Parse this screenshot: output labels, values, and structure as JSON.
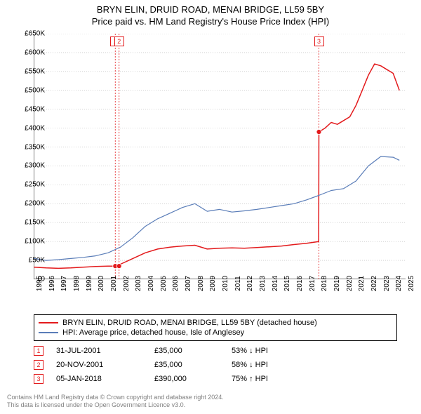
{
  "title": {
    "line1": "BRYN ELIN, DRUID ROAD, MENAI BRIDGE, LL59 5BY",
    "line2": "Price paid vs. HM Land Registry's House Price Index (HPI)"
  },
  "chart": {
    "type": "line",
    "background_color": "#ffffff",
    "grid_color": "#d0d0d0",
    "tick_dash_color": "#b8b8b8",
    "ylim": [
      0,
      650000
    ],
    "ytick_step": 50000,
    "yticks": [
      "£0",
      "£50K",
      "£100K",
      "£150K",
      "£200K",
      "£250K",
      "£300K",
      "£350K",
      "£400K",
      "£450K",
      "£500K",
      "£550K",
      "£600K",
      "£650K"
    ],
    "xlim": [
      1995,
      2025
    ],
    "xticks": [
      1995,
      1996,
      1997,
      1998,
      1999,
      2000,
      2001,
      2002,
      2003,
      2004,
      2005,
      2006,
      2007,
      2008,
      2009,
      2010,
      2011,
      2012,
      2013,
      2014,
      2015,
      2016,
      2017,
      2018,
      2019,
      2020,
      2021,
      2022,
      2023,
      2024,
      2025
    ],
    "label_fontsize": 10,
    "series": [
      {
        "name": "property",
        "label": "BRYN ELIN, DRUID ROAD, MENAI BRIDGE, LL59 5BY (detached house)",
        "color": "#e31a1c",
        "line_width": 1.5,
        "points": [
          [
            1995,
            32000
          ],
          [
            1996,
            30000
          ],
          [
            1997,
            29000
          ],
          [
            1998,
            30000
          ],
          [
            1999,
            32000
          ],
          [
            2000,
            34000
          ],
          [
            2001,
            35000
          ],
          [
            2001.58,
            35000
          ],
          [
            2001.89,
            35000
          ],
          [
            2002,
            40000
          ],
          [
            2003,
            55000
          ],
          [
            2004,
            70000
          ],
          [
            2005,
            80000
          ],
          [
            2006,
            85000
          ],
          [
            2007,
            88000
          ],
          [
            2008,
            90000
          ],
          [
            2009,
            80000
          ],
          [
            2010,
            82000
          ],
          [
            2011,
            83000
          ],
          [
            2012,
            82000
          ],
          [
            2013,
            84000
          ],
          [
            2014,
            86000
          ],
          [
            2015,
            88000
          ],
          [
            2016,
            92000
          ],
          [
            2017,
            95000
          ],
          [
            2017.99,
            100000
          ],
          [
            2018.01,
            390000
          ],
          [
            2018.5,
            400000
          ],
          [
            2019,
            415000
          ],
          [
            2019.5,
            410000
          ],
          [
            2020,
            420000
          ],
          [
            2020.5,
            430000
          ],
          [
            2021,
            460000
          ],
          [
            2021.5,
            500000
          ],
          [
            2022,
            540000
          ],
          [
            2022.5,
            570000
          ],
          [
            2023,
            565000
          ],
          [
            2023.5,
            555000
          ],
          [
            2024,
            545000
          ],
          [
            2024.5,
            500000
          ]
        ]
      },
      {
        "name": "hpi",
        "label": "HPI: Average price, detached house, Isle of Anglesey",
        "color": "#5a7db8",
        "line_width": 1.2,
        "points": [
          [
            1995,
            55000
          ],
          [
            1996,
            50000
          ],
          [
            1997,
            52000
          ],
          [
            1998,
            55000
          ],
          [
            1999,
            58000
          ],
          [
            2000,
            62000
          ],
          [
            2001,
            70000
          ],
          [
            2002,
            85000
          ],
          [
            2003,
            110000
          ],
          [
            2004,
            140000
          ],
          [
            2005,
            160000
          ],
          [
            2006,
            175000
          ],
          [
            2007,
            190000
          ],
          [
            2008,
            200000
          ],
          [
            2009,
            180000
          ],
          [
            2010,
            185000
          ],
          [
            2011,
            178000
          ],
          [
            2012,
            181000
          ],
          [
            2013,
            185000
          ],
          [
            2014,
            190000
          ],
          [
            2015,
            195000
          ],
          [
            2016,
            200000
          ],
          [
            2017,
            210000
          ],
          [
            2018,
            222000
          ],
          [
            2019,
            235000
          ],
          [
            2020,
            240000
          ],
          [
            2021,
            260000
          ],
          [
            2022,
            300000
          ],
          [
            2023,
            325000
          ],
          [
            2024,
            323000
          ],
          [
            2024.5,
            315000
          ]
        ]
      }
    ],
    "event_markers": [
      {
        "id": "1",
        "x": 2001.58,
        "color": "#e31a1c",
        "sale_y": 35000
      },
      {
        "id": "2",
        "x": 2001.89,
        "color": "#e31a1c",
        "sale_y": 35000
      },
      {
        "id": "3",
        "x": 2018.01,
        "color": "#e31a1c",
        "sale_y": 390000
      }
    ]
  },
  "legend": {
    "border_color": "#000000",
    "items": [
      {
        "color": "#e31a1c",
        "label": "BRYN ELIN, DRUID ROAD, MENAI BRIDGE, LL59 5BY (detached house)"
      },
      {
        "color": "#5a7db8",
        "label": "HPI: Average price, detached house, Isle of Anglesey"
      }
    ]
  },
  "events_table": {
    "rows": [
      {
        "id": "1",
        "color": "#e31a1c",
        "date": "31-JUL-2001",
        "price": "£35,000",
        "pct": "53% ↓ HPI"
      },
      {
        "id": "2",
        "color": "#e31a1c",
        "date": "20-NOV-2001",
        "price": "£35,000",
        "pct": "58% ↓ HPI"
      },
      {
        "id": "3",
        "color": "#e31a1c",
        "date": "05-JAN-2018",
        "price": "£390,000",
        "pct": "75% ↑ HPI"
      }
    ]
  },
  "footer": {
    "line1": "Contains HM Land Registry data © Crown copyright and database right 2024.",
    "line2": "This data is licensed under the Open Government Licence v3.0."
  }
}
